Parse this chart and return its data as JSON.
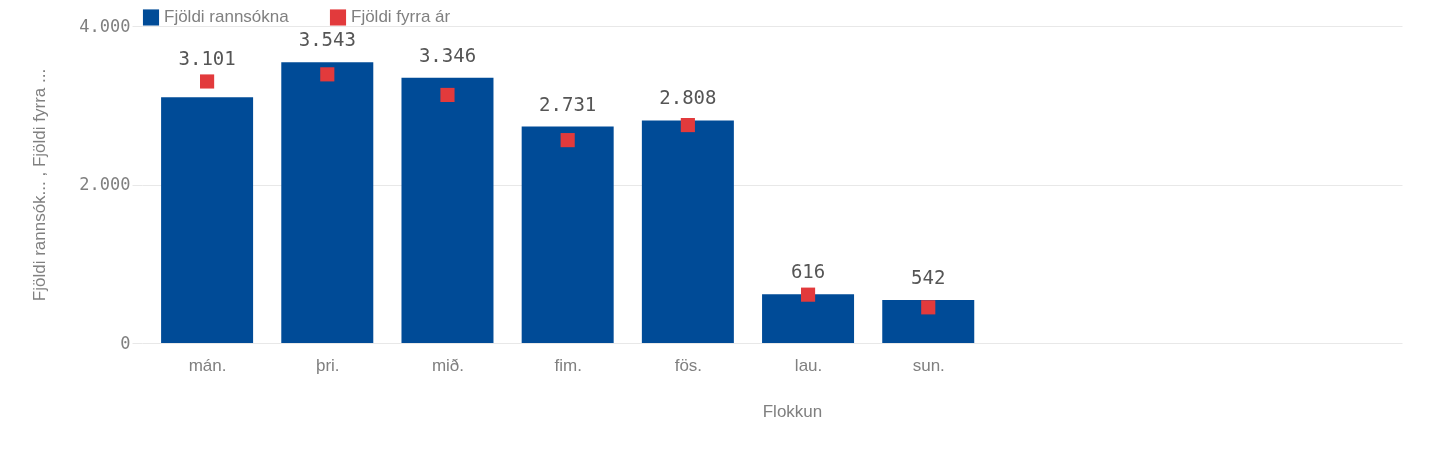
{
  "chart_data": {
    "type": "bar",
    "categories": [
      "mán.",
      "þri.",
      "mið.",
      "fim.",
      "fös.",
      "lau.",
      "sun."
    ],
    "xlabel": "Flokkun",
    "ylabel": "Fjöldi rannsók... , Fjöldi fyrra ...",
    "series": [
      {
        "name": "Fjöldi rannsókna",
        "color": "#004b97",
        "values": [
          3101,
          3543,
          3346,
          2731,
          2808,
          616,
          542
        ],
        "value_labels": [
          "3.101",
          "3.543",
          "3.346",
          "2.731",
          "2.808",
          "616",
          "542"
        ]
      },
      {
        "name": "Fjöldi fyrra ár",
        "type": "scatter",
        "marker": "square",
        "color": "#e23a3c",
        "values": [
          3300,
          3390,
          3130,
          2560,
          2750,
          610,
          450
        ]
      }
    ],
    "ylim": [
      0,
      4000
    ],
    "yticks": [
      {
        "value": 0,
        "label": "0"
      },
      {
        "value": 2000,
        "label": "2.000"
      },
      {
        "value": 4000,
        "label": "4.000"
      }
    ],
    "grid": "y",
    "legend": "top left"
  }
}
